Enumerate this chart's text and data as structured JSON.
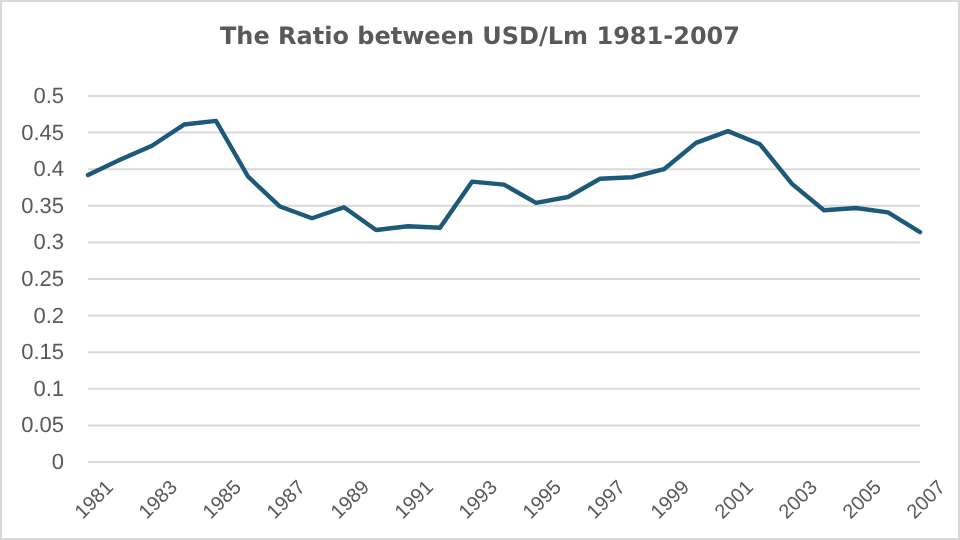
{
  "chart_data": {
    "type": "line",
    "title": "The Ratio between USD/Lm 1981-2007",
    "x": [
      1981,
      1982,
      1983,
      1984,
      1985,
      1986,
      1987,
      1988,
      1989,
      1990,
      1991,
      1992,
      1993,
      1994,
      1995,
      1996,
      1997,
      1998,
      1999,
      2000,
      2001,
      2002,
      2003,
      2004,
      2005,
      2006,
      2007
    ],
    "series": [
      {
        "color": "#1d5a7a",
        "values": [
          0.392,
          0.413,
          0.432,
          0.461,
          0.466,
          0.39,
          0.349,
          0.333,
          0.348,
          0.317,
          0.322,
          0.32,
          0.383,
          0.379,
          0.354,
          0.362,
          0.387,
          0.389,
          0.4,
          0.436,
          0.452,
          0.434,
          0.38,
          0.344,
          0.347,
          0.341,
          0.314
        ]
      }
    ],
    "xlim": [
      1981,
      2007
    ],
    "xticks": [
      {
        "value": 1981,
        "label": "1981"
      },
      {
        "value": 1983,
        "label": "1983"
      },
      {
        "value": 1985,
        "label": "1985"
      },
      {
        "value": 1987,
        "label": "1987"
      },
      {
        "value": 1989,
        "label": "1989"
      },
      {
        "value": 1991,
        "label": "1991"
      },
      {
        "value": 1993,
        "label": "1993"
      },
      {
        "value": 1995,
        "label": "1995"
      },
      {
        "value": 1997,
        "label": "1997"
      },
      {
        "value": 1999,
        "label": "1999"
      },
      {
        "value": 2001,
        "label": "2001"
      },
      {
        "value": 2003,
        "label": "2003"
      },
      {
        "value": 2005,
        "label": "2005"
      },
      {
        "value": 2007,
        "label": "2007"
      }
    ],
    "ylim": [
      0,
      0.5
    ],
    "yticks": [
      0,
      0.05,
      0.1,
      0.15,
      0.2,
      0.25,
      0.3,
      0.35,
      0.4,
      0.45,
      0.5
    ],
    "grid": "y",
    "marker": "none",
    "line_style": "solid"
  }
}
